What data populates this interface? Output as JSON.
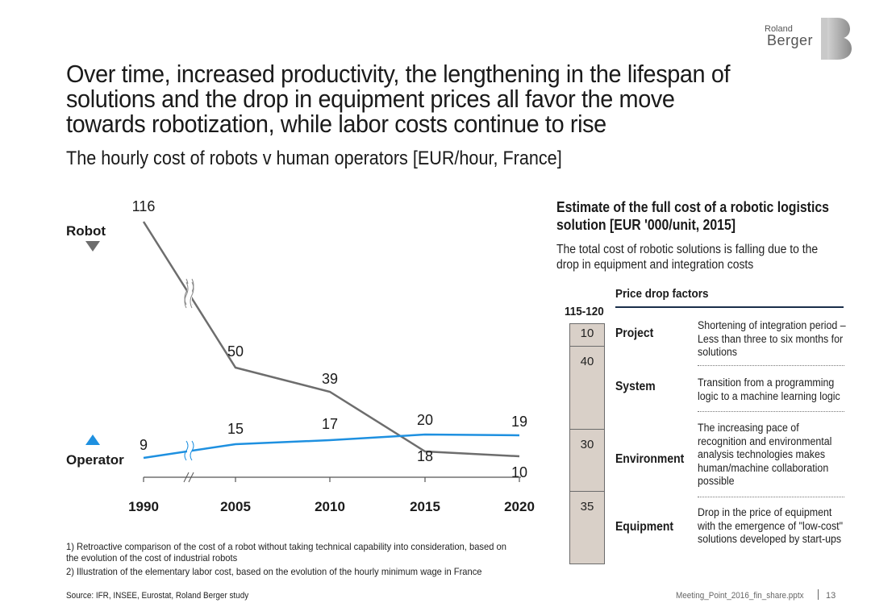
{
  "brand": {
    "line1": "Roland",
    "line2": "Berger"
  },
  "title": "Over time, increased productivity, the lengthening in the lifespan of solutions and the drop in equipment prices all favor the move towards robotization, while labor costs continue to rise",
  "subtitle": "The hourly cost of robots v human operators [EUR/hour, France]",
  "chart_data": {
    "type": "line",
    "title": "The hourly cost of robots v human operators [EUR/hour, France]",
    "x": [
      1990,
      2005,
      2010,
      2015,
      2020
    ],
    "categories": [
      "1990",
      "2005",
      "2010",
      "2015",
      "2020"
    ],
    "axis_break_between": [
      "1990",
      "2005"
    ],
    "series": [
      {
        "name": "Robot",
        "color": "#6d6d6d",
        "values": [
          116,
          50,
          39,
          18,
          10
        ]
      },
      {
        "name": "Operator",
        "color": "#1e90e0",
        "values": [
          9,
          15,
          17,
          20,
          19
        ]
      }
    ],
    "value_labels": {
      "robot": [
        "116",
        "50",
        "39",
        "18",
        "10"
      ],
      "operator": [
        "9",
        "15",
        "17",
        "20",
        "19"
      ]
    },
    "legend": {
      "robot": "Robot",
      "operator": "Operator"
    }
  },
  "right_panel": {
    "heading": "Estimate of the full cost of a robotic logistics solution [EUR '000/unit, 2015]",
    "subtext": "The total cost of robotic solutions is falling due to the drop in equipment and integration costs",
    "factors_heading": "Price drop factors",
    "total_label": "115-120",
    "stack": [
      {
        "value": 10,
        "label": "10"
      },
      {
        "value": 40,
        "label": "40"
      },
      {
        "value": 30,
        "label": "30"
      },
      {
        "value": 35,
        "label": "35"
      }
    ],
    "factors": [
      {
        "name": "Project",
        "desc": "Shortening of integration period – Less than three to six months for solutions"
      },
      {
        "name": "System",
        "desc": "Transition from a programming logic to a machine learning logic"
      },
      {
        "name": "Environment",
        "desc": "The increasing pace of recognition and environmental analysis technologies makes human/machine collaboration possible"
      },
      {
        "name": "Equipment",
        "desc": "Drop in the price of equipment with the emergence of \"low-cost\" solutions developed by start-ups"
      }
    ]
  },
  "footnotes": [
    "1) Retroactive comparison of the cost of a robot without taking technical capability into consideration, based on the evolution of the cost of industrial robots",
    "2) Illustration of the elementary labor cost, based on the evolution of the hourly minimum wage in France"
  ],
  "source": "Source: IFR, INSEE, Eurostat, Roland Berger study",
  "file_name": "Meeting_Point_2016_fin_share.pptx",
  "page_number": "13",
  "colors": {
    "robot": "#6d6d6d",
    "operator": "#1e90e0",
    "stack_fill": "#d9d0c8",
    "rule": "#1a2e4a"
  }
}
